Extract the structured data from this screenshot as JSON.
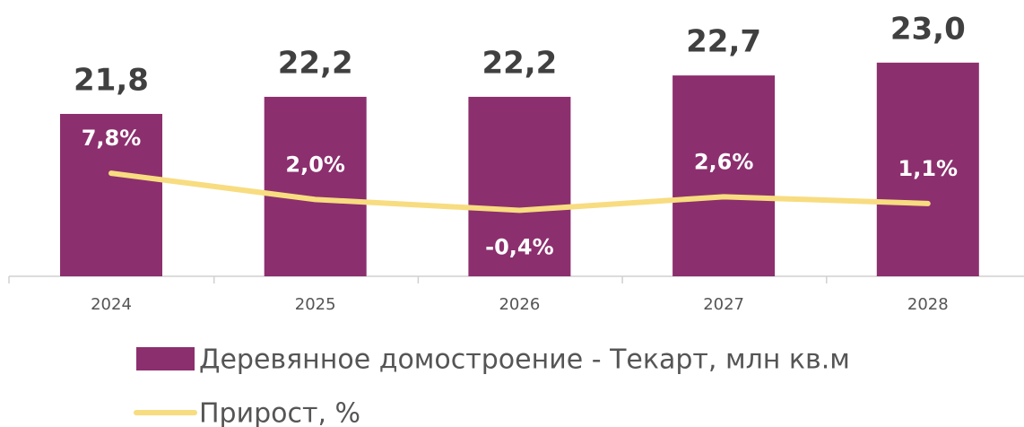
{
  "chart_data": {
    "type": "bar",
    "categories": [
      "2024",
      "2025",
      "2026",
      "2027",
      "2028"
    ],
    "series": [
      {
        "name": "Деревянное домостроение - Текарт, млн кв.м",
        "type": "bar",
        "color": "#8c2f6e",
        "values": [
          21.8,
          22.2,
          22.2,
          22.7,
          23.0
        ],
        "value_labels": [
          "21,8",
          "22,2",
          "22,2",
          "22,7",
          "23,0"
        ]
      },
      {
        "name": "Прирост, %",
        "type": "line",
        "axis": "y2",
        "color": "#f8dc80",
        "values": [
          7.8,
          2.0,
          -0.4,
          2.6,
          1.1
        ],
        "value_labels": [
          "7,8%",
          "2,0%",
          "-0,4%",
          "2,6%",
          "1,1%"
        ]
      }
    ],
    "ylim": [
      18,
      23.5
    ],
    "y2lim": [
      -15,
      37
    ],
    "legend": "bottom"
  }
}
